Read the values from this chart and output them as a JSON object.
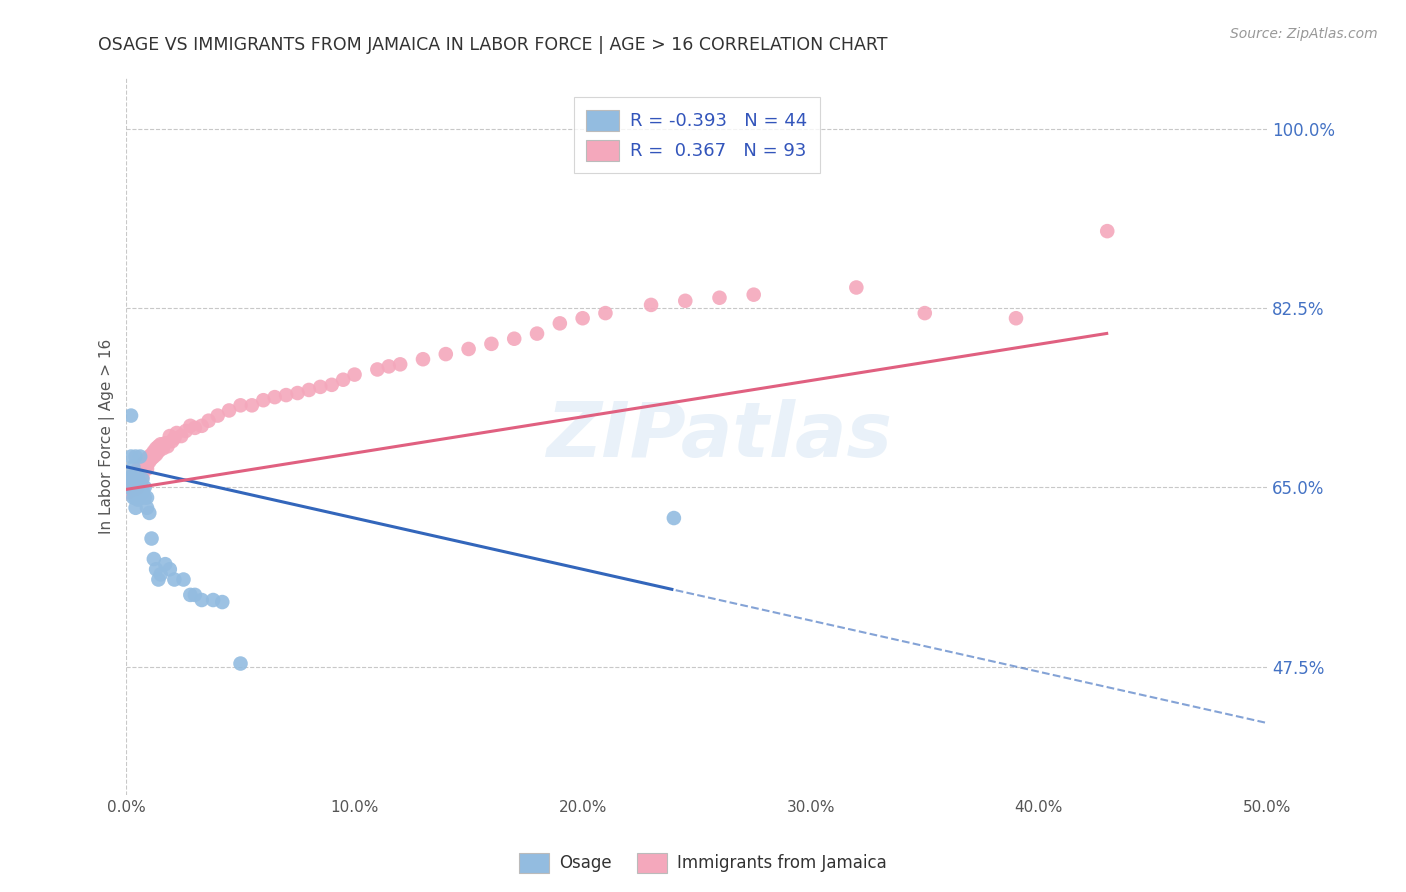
{
  "title": "OSAGE VS IMMIGRANTS FROM JAMAICA IN LABOR FORCE | AGE > 16 CORRELATION CHART",
  "source": "Source: ZipAtlas.com",
  "ylabel": "In Labor Force | Age > 16",
  "xlim": [
    0.0,
    0.5
  ],
  "ylim": [
    0.35,
    1.05
  ],
  "xticks": [
    0.0,
    0.1,
    0.2,
    0.3,
    0.4,
    0.5
  ],
  "xticklabels": [
    "0.0%",
    "10.0%",
    "20.0%",
    "30.0%",
    "40.0%",
    "50.0%"
  ],
  "yticks": [
    0.475,
    0.65,
    0.825,
    1.0
  ],
  "yticklabels": [
    "47.5%",
    "65.0%",
    "82.5%",
    "100.0%"
  ],
  "right_ytick_color": "#4472c4",
  "legend_r_blue": "-0.393",
  "legend_n_blue": "44",
  "legend_r_pink": "0.367",
  "legend_n_pink": "93",
  "blue_color": "#93bce0",
  "pink_color": "#f4a8bc",
  "trendline_blue_color": "#3366bb",
  "trendline_pink_color": "#e06080",
  "grid_color": "#c8c8c8",
  "background_color": "#ffffff",
  "watermark": "ZIPatlas",
  "osage_x": [
    0.001,
    0.001,
    0.002,
    0.002,
    0.002,
    0.003,
    0.003,
    0.003,
    0.003,
    0.004,
    0.004,
    0.004,
    0.004,
    0.005,
    0.005,
    0.005,
    0.005,
    0.006,
    0.006,
    0.006,
    0.007,
    0.007,
    0.007,
    0.008,
    0.008,
    0.009,
    0.009,
    0.01,
    0.011,
    0.012,
    0.013,
    0.014,
    0.015,
    0.017,
    0.019,
    0.021,
    0.025,
    0.028,
    0.03,
    0.033,
    0.038,
    0.042,
    0.05,
    0.24
  ],
  "osage_y": [
    0.66,
    0.65,
    0.72,
    0.68,
    0.66,
    0.67,
    0.655,
    0.648,
    0.64,
    0.68,
    0.65,
    0.64,
    0.63,
    0.648,
    0.638,
    0.66,
    0.648,
    0.68,
    0.655,
    0.65,
    0.645,
    0.658,
    0.648,
    0.65,
    0.64,
    0.64,
    0.63,
    0.625,
    0.6,
    0.58,
    0.57,
    0.56,
    0.565,
    0.575,
    0.57,
    0.56,
    0.56,
    0.545,
    0.545,
    0.54,
    0.54,
    0.538,
    0.478,
    0.62
  ],
  "jamaica_x": [
    0.001,
    0.001,
    0.001,
    0.002,
    0.002,
    0.002,
    0.002,
    0.003,
    0.003,
    0.003,
    0.003,
    0.003,
    0.004,
    0.004,
    0.004,
    0.004,
    0.004,
    0.005,
    0.005,
    0.005,
    0.005,
    0.005,
    0.006,
    0.006,
    0.006,
    0.006,
    0.007,
    0.007,
    0.007,
    0.007,
    0.008,
    0.008,
    0.008,
    0.009,
    0.009,
    0.009,
    0.01,
    0.01,
    0.011,
    0.011,
    0.012,
    0.012,
    0.013,
    0.013,
    0.014,
    0.014,
    0.015,
    0.016,
    0.017,
    0.018,
    0.019,
    0.02,
    0.021,
    0.022,
    0.024,
    0.026,
    0.028,
    0.03,
    0.033,
    0.036,
    0.04,
    0.045,
    0.05,
    0.055,
    0.06,
    0.065,
    0.07,
    0.075,
    0.08,
    0.085,
    0.09,
    0.095,
    0.1,
    0.11,
    0.115,
    0.12,
    0.13,
    0.14,
    0.15,
    0.16,
    0.17,
    0.18,
    0.19,
    0.2,
    0.21,
    0.23,
    0.245,
    0.26,
    0.275,
    0.32,
    0.35,
    0.39,
    0.43
  ],
  "jamaica_y": [
    0.65,
    0.648,
    0.645,
    0.66,
    0.655,
    0.65,
    0.648,
    0.66,
    0.658,
    0.655,
    0.652,
    0.648,
    0.665,
    0.66,
    0.658,
    0.655,
    0.648,
    0.668,
    0.665,
    0.66,
    0.658,
    0.65,
    0.67,
    0.668,
    0.665,
    0.66,
    0.672,
    0.668,
    0.665,
    0.66,
    0.675,
    0.672,
    0.668,
    0.678,
    0.672,
    0.668,
    0.68,
    0.675,
    0.682,
    0.678,
    0.685,
    0.68,
    0.688,
    0.682,
    0.69,
    0.685,
    0.692,
    0.688,
    0.693,
    0.69,
    0.7,
    0.695,
    0.698,
    0.703,
    0.7,
    0.705,
    0.71,
    0.708,
    0.71,
    0.715,
    0.72,
    0.725,
    0.73,
    0.73,
    0.735,
    0.738,
    0.74,
    0.742,
    0.745,
    0.748,
    0.75,
    0.755,
    0.76,
    0.765,
    0.768,
    0.77,
    0.775,
    0.78,
    0.785,
    0.79,
    0.795,
    0.8,
    0.81,
    0.815,
    0.82,
    0.828,
    0.832,
    0.835,
    0.838,
    0.845,
    0.82,
    0.815,
    0.9
  ]
}
